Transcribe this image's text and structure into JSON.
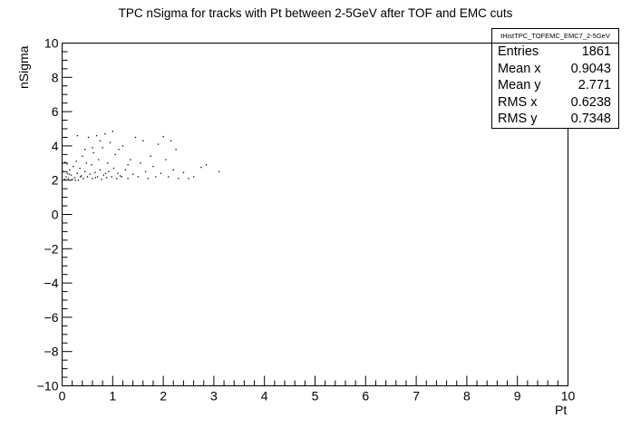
{
  "chart_data": {
    "type": "scatter",
    "title": "TPC nSigma for tracks with Pt between 2-5GeV after TOF and EMC cuts",
    "xlabel": "Pt",
    "ylabel": "nSigma",
    "xlim": [
      0,
      10
    ],
    "ylim": [
      -10,
      10
    ],
    "x_ticks": [
      "0",
      "1",
      "2",
      "3",
      "4",
      "5",
      "6",
      "7",
      "8",
      "9",
      "10"
    ],
    "y_ticks": [
      "10",
      "8",
      "6",
      "4",
      "2",
      "0",
      "−2",
      "−4",
      "−6",
      "−8",
      "−10"
    ],
    "grid": false,
    "marker_color": "#000000",
    "points": [
      [
        0.05,
        2.05
      ],
      [
        0.08,
        2.2
      ],
      [
        0.1,
        2.4
      ],
      [
        0.12,
        2.1
      ],
      [
        0.15,
        2.6
      ],
      [
        0.18,
        2.3
      ],
      [
        0.2,
        2.05
      ],
      [
        0.22,
        2.8
      ],
      [
        0.25,
        2.15
      ],
      [
        0.28,
        3.1
      ],
      [
        0.3,
        2.4
      ],
      [
        0.32,
        2.0
      ],
      [
        0.35,
        2.7
      ],
      [
        0.38,
        2.25
      ],
      [
        0.4,
        3.4
      ],
      [
        0.42,
        2.1
      ],
      [
        0.45,
        2.5
      ],
      [
        0.48,
        3.0
      ],
      [
        0.5,
        2.2
      ],
      [
        0.52,
        4.5
      ],
      [
        0.55,
        2.35
      ],
      [
        0.58,
        2.9
      ],
      [
        0.6,
        2.1
      ],
      [
        0.62,
        3.6
      ],
      [
        0.65,
        2.45
      ],
      [
        0.68,
        4.6
      ],
      [
        0.7,
        2.2
      ],
      [
        0.72,
        3.2
      ],
      [
        0.75,
        2.6
      ],
      [
        0.78,
        2.05
      ],
      [
        0.8,
        3.9
      ],
      [
        0.82,
        2.3
      ],
      [
        0.85,
        4.7
      ],
      [
        0.88,
        2.15
      ],
      [
        0.9,
        3.0
      ],
      [
        0.92,
        2.5
      ],
      [
        0.95,
        4.2
      ],
      [
        0.98,
        2.2
      ],
      [
        1.0,
        4.85
      ],
      [
        1.02,
        2.7
      ],
      [
        1.05,
        3.5
      ],
      [
        1.08,
        2.1
      ],
      [
        1.1,
        2.4
      ],
      [
        1.12,
        3.8
      ],
      [
        1.15,
        2.25
      ],
      [
        1.2,
        4.0
      ],
      [
        1.25,
        2.6
      ],
      [
        1.3,
        2.1
      ],
      [
        1.35,
        3.2
      ],
      [
        1.4,
        2.35
      ],
      [
        1.45,
        4.5
      ],
      [
        1.5,
        2.2
      ],
      [
        1.55,
        3.0
      ],
      [
        1.6,
        4.3
      ],
      [
        1.65,
        2.5
      ],
      [
        1.7,
        2.1
      ],
      [
        1.75,
        3.4
      ],
      [
        1.8,
        2.8
      ],
      [
        1.85,
        2.2
      ],
      [
        1.9,
        4.1
      ],
      [
        1.95,
        2.4
      ],
      [
        2.0,
        4.55
      ],
      [
        2.05,
        3.2
      ],
      [
        2.1,
        2.2
      ],
      [
        2.15,
        4.3
      ],
      [
        2.2,
        2.6
      ],
      [
        2.25,
        3.8
      ],
      [
        2.3,
        2.1
      ],
      [
        2.4,
        2.45
      ],
      [
        2.5,
        2.1
      ],
      [
        2.6,
        2.2
      ],
      [
        2.75,
        2.75
      ],
      [
        2.85,
        2.9
      ],
      [
        3.1,
        2.5
      ],
      [
        0.1,
        2.95
      ],
      [
        0.3,
        4.6
      ],
      [
        0.45,
        3.8
      ],
      [
        0.6,
        3.9
      ],
      [
        0.75,
        4.3
      ],
      [
        1.3,
        2.9
      ],
      [
        0.02,
        2.5
      ],
      [
        0.06,
        3.05
      ],
      [
        0.14,
        2.35
      ],
      [
        0.26,
        2.0
      ],
      [
        0.36,
        2.2
      ],
      [
        0.66,
        2.15
      ],
      [
        0.86,
        2.4
      ],
      [
        1.18,
        2.2
      ]
    ]
  },
  "stats_box": {
    "name": "tHistTPC_TOFEMC_EMC7_2-5GeV",
    "rows": [
      {
        "label": "Entries",
        "value": "1861"
      },
      {
        "label": "Mean x",
        "value": "0.9043"
      },
      {
        "label": "Mean y",
        "value": "2.771"
      },
      {
        "label": "RMS x",
        "value": "0.6238"
      },
      {
        "label": "RMS y",
        "value": "0.7348"
      }
    ]
  }
}
